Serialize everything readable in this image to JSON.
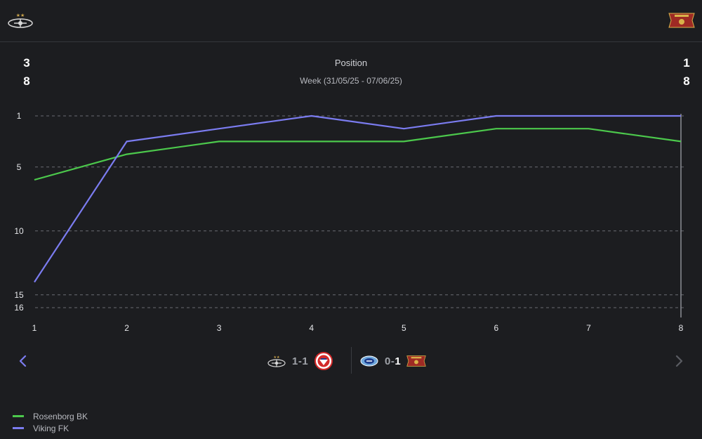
{
  "header": {
    "left_team_logo": "rosenborg-crest-icon",
    "right_team_logo": "viking-crest-icon"
  },
  "stats": {
    "left": {
      "row1": "3",
      "row2": "8"
    },
    "right": {
      "row1": "1",
      "row2": "8"
    }
  },
  "chart_data": {
    "type": "line",
    "title": "Position",
    "subtitle": "Week (31/05/25 - 07/06/25)",
    "xlabel": "Week",
    "ylabel": "Position",
    "x": [
      1,
      2,
      3,
      4,
      5,
      6,
      7,
      8
    ],
    "y_ticks": [
      1,
      5,
      10,
      15,
      16
    ],
    "ylim": [
      1,
      16
    ],
    "y_inverted": true,
    "highlight_week": 8,
    "series": [
      {
        "name": "Rosenborg BK",
        "color": "#4cc94c",
        "values": [
          6,
          4,
          3,
          3,
          3,
          2,
          2,
          3
        ]
      },
      {
        "name": "Viking FK",
        "color": "#7b7cf0",
        "values": [
          14,
          3,
          2,
          1,
          2,
          1,
          1,
          1
        ]
      }
    ]
  },
  "matches": [
    {
      "home_icon": "rosenborg-crest-icon",
      "home_goals": "1",
      "away_goals": "1",
      "away_icon": "fredrikstad-crest-icon"
    },
    {
      "home_icon": "molde-crest-icon",
      "home_goals": "0",
      "away_goals": "1",
      "away_icon": "viking-crest-icon"
    }
  ],
  "legend": [
    {
      "label": "Rosenborg BK",
      "color": "#4cc94c"
    },
    {
      "label": "Viking FK",
      "color": "#7b7cf0"
    }
  ],
  "nav": {
    "prev_icon": "chevron-left-icon",
    "next_icon": "chevron-right-icon"
  }
}
